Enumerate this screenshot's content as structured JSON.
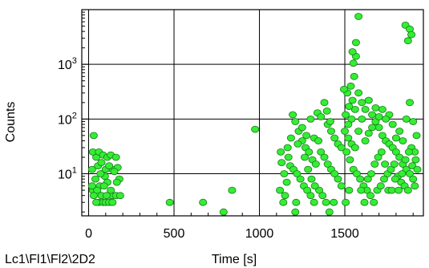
{
  "chart_data": {
    "type": "scatter",
    "title": "",
    "xlabel": "Time [s]",
    "ylabel": "Counts",
    "footer": "Lc1\\Fl1\\Fl2\\2D2",
    "xlim": [
      -40,
      1960
    ],
    "ylim": [
      1.7,
      10000
    ],
    "yscale": "log",
    "grid": true,
    "x_ticks": [
      {
        "value": 0,
        "label": "0"
      },
      {
        "value": 500,
        "label": "500"
      },
      {
        "value": 1000,
        "label": "1000"
      },
      {
        "value": 1500,
        "label": "1500"
      }
    ],
    "y_ticks": [
      {
        "value": 10,
        "base": "10",
        "exp": "1"
      },
      {
        "value": 100,
        "base": "10",
        "exp": "2"
      },
      {
        "value": 1000,
        "base": "10",
        "exp": "3"
      }
    ],
    "colors": {
      "marker_fill": "#33ee33",
      "marker_stroke": "#1a7a1a",
      "grid": "#000000"
    },
    "series": [
      {
        "values": [
          [
            30,
            50
          ],
          [
            45,
            20
          ],
          [
            25,
            25
          ],
          [
            60,
            25
          ],
          [
            85,
            22
          ],
          [
            110,
            20
          ],
          [
            130,
            22
          ],
          [
            160,
            20
          ],
          [
            140,
            12
          ],
          [
            170,
            13
          ],
          [
            20,
            12
          ],
          [
            55,
            14
          ],
          [
            75,
            16
          ],
          [
            100,
            12
          ],
          [
            120,
            14
          ],
          [
            95,
            9
          ],
          [
            150,
            11
          ],
          [
            70,
            10
          ],
          [
            180,
            8
          ],
          [
            40,
            8
          ],
          [
            110,
            7
          ],
          [
            65,
            6
          ],
          [
            25,
            5
          ],
          [
            50,
            5
          ],
          [
            90,
            6
          ],
          [
            135,
            4
          ],
          [
            160,
            4
          ],
          [
            185,
            4
          ],
          [
            30,
            4
          ],
          [
            60,
            3
          ],
          [
            85,
            3
          ],
          [
            100,
            3
          ],
          [
            120,
            3
          ],
          [
            140,
            3
          ],
          [
            45,
            3
          ],
          [
            75,
            4
          ],
          [
            130,
            5
          ],
          [
            20,
            6
          ],
          [
            165,
            7
          ],
          [
            105,
            4
          ],
          [
            475,
            3
          ],
          [
            670,
            3
          ],
          [
            790,
            2
          ],
          [
            840,
            5
          ],
          [
            975,
            65
          ],
          [
            1130,
            16
          ],
          [
            1145,
            10
          ],
          [
            1160,
            7
          ],
          [
            1120,
            5
          ],
          [
            1150,
            4
          ],
          [
            1140,
            3
          ],
          [
            1170,
            20
          ],
          [
            1125,
            25
          ],
          [
            1165,
            30
          ],
          [
            1180,
            14
          ],
          [
            1195,
            120
          ],
          [
            1210,
            90
          ],
          [
            1230,
            60
          ],
          [
            1250,
            40
          ],
          [
            1270,
            30
          ],
          [
            1290,
            25
          ],
          [
            1310,
            18
          ],
          [
            1330,
            15
          ],
          [
            1200,
            12
          ],
          [
            1220,
            10
          ],
          [
            1240,
            8
          ],
          [
            1260,
            6
          ],
          [
            1280,
            5
          ],
          [
            1300,
            4
          ],
          [
            1320,
            3
          ],
          [
            1215,
            3
          ],
          [
            1340,
            130
          ],
          [
            1360,
            110
          ],
          [
            1380,
            200
          ],
          [
            1400,
            80
          ],
          [
            1420,
            60
          ],
          [
            1440,
            45
          ],
          [
            1460,
            35
          ],
          [
            1480,
            30
          ],
          [
            1360,
            25
          ],
          [
            1380,
            20
          ],
          [
            1400,
            15
          ],
          [
            1420,
            12
          ],
          [
            1440,
            10
          ],
          [
            1460,
            8
          ],
          [
            1480,
            6
          ],
          [
            1350,
            5
          ],
          [
            1370,
            4
          ],
          [
            1390,
            3
          ],
          [
            1410,
            2
          ],
          [
            1210,
            2
          ],
          [
            1435,
            3
          ],
          [
            1250,
            70
          ],
          [
            1275,
            50
          ],
          [
            1300,
            100
          ],
          [
            1320,
            45
          ],
          [
            1225,
            35
          ],
          [
            1185,
            45
          ],
          [
            1395,
            140
          ],
          [
            1415,
            90
          ],
          [
            1265,
            20
          ],
          [
            1285,
            12
          ],
          [
            1305,
            8
          ],
          [
            1325,
            6
          ],
          [
            1345,
            40
          ],
          [
            1500,
            60
          ],
          [
            1520,
            45
          ],
          [
            1540,
            35
          ],
          [
            1560,
            30
          ],
          [
            1580,
            300
          ],
          [
            1600,
            200
          ],
          [
            1620,
            150
          ],
          [
            1640,
            220
          ],
          [
            1660,
            120
          ],
          [
            1680,
            90
          ],
          [
            1700,
            70
          ],
          [
            1720,
            50
          ],
          [
            1740,
            40
          ],
          [
            1760,
            35
          ],
          [
            1780,
            30
          ],
          [
            1800,
            25
          ],
          [
            1820,
            20
          ],
          [
            1840,
            15
          ],
          [
            1860,
            12
          ],
          [
            1880,
            10
          ],
          [
            1900,
            8
          ],
          [
            1510,
            25
          ],
          [
            1530,
            18
          ],
          [
            1550,
            12
          ],
          [
            1570,
            10
          ],
          [
            1590,
            8
          ],
          [
            1610,
            6
          ],
          [
            1630,
            5
          ],
          [
            1650,
            4
          ],
          [
            1670,
            3
          ],
          [
            1690,
            5
          ],
          [
            1710,
            6
          ],
          [
            1730,
            8
          ],
          [
            1750,
            10
          ],
          [
            1770,
            12
          ],
          [
            1790,
            15
          ],
          [
            1810,
            9
          ],
          [
            1830,
            7
          ],
          [
            1850,
            6
          ],
          [
            1870,
            5
          ],
          [
            1890,
            30
          ],
          [
            1910,
            25
          ],
          [
            1920,
            50
          ],
          [
            1900,
            90
          ],
          [
            1880,
            200
          ],
          [
            1860,
            100
          ],
          [
            1840,
            40
          ],
          [
            1820,
            60
          ],
          [
            1800,
            45
          ],
          [
            1780,
            80
          ],
          [
            1760,
            120
          ],
          [
            1740,
            100
          ],
          [
            1720,
            150
          ],
          [
            1700,
            110
          ],
          [
            1680,
            160
          ],
          [
            1660,
            70
          ],
          [
            1640,
            55
          ],
          [
            1620,
            40
          ],
          [
            1600,
            100
          ],
          [
            1580,
            60
          ],
          [
            1560,
            150
          ],
          [
            1540,
            100
          ],
          [
            1520,
            80
          ],
          [
            1505,
            120
          ],
          [
            1525,
            170
          ],
          [
            1545,
            220
          ],
          [
            1515,
            300
          ],
          [
            1535,
            400
          ],
          [
            1555,
            600
          ],
          [
            1550,
            1050
          ],
          [
            1565,
            1400
          ],
          [
            1545,
            1700
          ],
          [
            1580,
            7500
          ],
          [
            1565,
            2500
          ],
          [
            1855,
            5200
          ],
          [
            1880,
            4400
          ],
          [
            1870,
            2700
          ],
          [
            1890,
            3500
          ],
          [
            1495,
            350
          ],
          [
            1595,
            5
          ],
          [
            1615,
            3
          ],
          [
            1505,
            3
          ],
          [
            1525,
            5
          ],
          [
            1635,
            8
          ],
          [
            1655,
            10
          ],
          [
            1675,
            15
          ],
          [
            1695,
            20
          ],
          [
            1715,
            25
          ],
          [
            1735,
            15
          ],
          [
            1755,
            5
          ],
          [
            1775,
            5
          ],
          [
            1795,
            8
          ],
          [
            1815,
            5
          ],
          [
            1835,
            10
          ],
          [
            1855,
            18
          ],
          [
            1875,
            25
          ],
          [
            1895,
            14
          ],
          [
            1915,
            18
          ],
          [
            1925,
            12
          ],
          [
            1910,
            6
          ]
        ]
      }
    ]
  }
}
